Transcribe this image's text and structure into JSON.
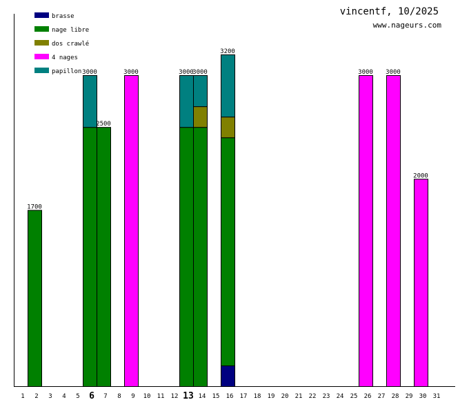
{
  "chart_data": {
    "type": "bar",
    "stacked": true,
    "title": "vincentf, 10/2025",
    "subtitle": "www.nageurs.com",
    "categories": [
      "1",
      "2",
      "3",
      "4",
      "5",
      "6",
      "7",
      "8",
      "9",
      "10",
      "11",
      "12",
      "13",
      "14",
      "15",
      "16",
      "17",
      "18",
      "19",
      "20",
      "21",
      "22",
      "23",
      "24",
      "25",
      "26",
      "27",
      "28",
      "29",
      "30",
      "31"
    ],
    "bold_categories": [
      "6",
      "13"
    ],
    "ylim": [
      0,
      3600
    ],
    "grid": false,
    "legend_position": "top-left",
    "series": [
      {
        "name": "brasse",
        "color": "#000080",
        "values": {
          "16": 200
        }
      },
      {
        "name": "nage libre",
        "color": "#008000",
        "values": {
          "2": 1700,
          "6": 2500,
          "7": 2500,
          "13": 2500,
          "14": 2500,
          "16": 2200
        }
      },
      {
        "name": "dos crawlé",
        "color": "#808000",
        "values": {
          "14": 200,
          "16": 200
        }
      },
      {
        "name": "4 nages",
        "color": "#ff00ff",
        "values": {
          "9": 3000,
          "26": 3000,
          "28": 3000,
          "30": 2000
        }
      },
      {
        "name": "papillon",
        "color": "#008080",
        "values": {
          "6": 500,
          "13": 500,
          "14": 300,
          "16": 600
        }
      }
    ],
    "totals": {
      "2": "1700",
      "6": "3000",
      "7": "2500",
      "9": "3000",
      "13": "3000",
      "14": "3000",
      "16": "3200",
      "26": "3000",
      "28": "3000",
      "30": "2000"
    }
  }
}
